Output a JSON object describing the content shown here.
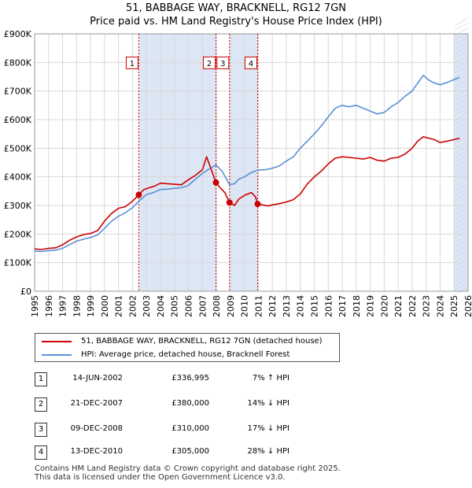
{
  "title_line1": "51, BABBAGE WAY, BRACKNELL, RG12 7GN",
  "title_line2": "Price paid vs. HM Land Registry's House Price Index (HPI)",
  "colors": {
    "property": "#cc0000",
    "hpi": "#5b8fd6",
    "band": "#dde6f4",
    "grid": "#d8d8d8",
    "vline": "#cc0000"
  },
  "legend": {
    "property_label": "51, BABBAGE WAY, BRACKNELL, RG12 7GN (detached house)",
    "hpi_label": "HPI: Average price, detached house, Bracknell Forest"
  },
  "sales": [
    {
      "num": "1",
      "date": "14-JUN-2002",
      "price": "£336,995",
      "hpi": "7% ↑ HPI"
    },
    {
      "num": "2",
      "date": "21-DEC-2007",
      "price": "£380,000",
      "hpi": "14% ↓ HPI"
    },
    {
      "num": "3",
      "date": "09-DEC-2008",
      "price": "£310,000",
      "hpi": "17% ↓ HPI"
    },
    {
      "num": "4",
      "date": "13-DEC-2010",
      "price": "£305,000",
      "hpi": "28% ↓ HPI"
    }
  ],
  "footer_line1": "Contains HM Land Registry data © Crown copyright and database right 2025.",
  "footer_line2": "This data is licensed under the Open Government Licence v3.0.",
  "chart_data": {
    "type": "line",
    "title": "51, BABBAGE WAY, BRACKNELL, RG12 7GN",
    "subtitle": "Price paid vs. HM Land Registry's House Price Index (HPI)",
    "xlabel": "",
    "ylabel": "",
    "xlim": [
      1995,
      2026
    ],
    "ylim": [
      0,
      900000
    ],
    "x_ticks": [
      1995,
      1996,
      1997,
      1998,
      1999,
      2000,
      2001,
      2002,
      2003,
      2004,
      2005,
      2006,
      2007,
      2008,
      2009,
      2010,
      2011,
      2012,
      2013,
      2014,
      2015,
      2016,
      2017,
      2018,
      2019,
      2020,
      2021,
      2022,
      2023,
      2024,
      2025,
      2026
    ],
    "y_ticks": [
      0,
      100000,
      200000,
      300000,
      400000,
      500000,
      600000,
      700000,
      800000,
      900000
    ],
    "y_tick_labels": [
      "£0",
      "£100K",
      "£200K",
      "£300K",
      "£400K",
      "£500K",
      "£600K",
      "£700K",
      "£800K",
      "£900K"
    ],
    "grid": true,
    "shaded_bands": [
      [
        2002.45,
        2007.97
      ],
      [
        2008.94,
        2010.95
      ],
      [
        2025.0,
        2026.0
      ]
    ],
    "sale_markers": [
      {
        "label": "1",
        "x": 2002.45,
        "y": 336995
      },
      {
        "label": "2",
        "x": 2007.97,
        "y": 380000
      },
      {
        "label": "3",
        "x": 2008.94,
        "y": 310000
      },
      {
        "label": "4",
        "x": 2010.95,
        "y": 305000
      }
    ],
    "series": [
      {
        "name": "51, BABBAGE WAY, BRACKNELL, RG12 7GN (detached house)",
        "x": [
          1995.0,
          1995.5,
          1996.0,
          1996.5,
          1997.0,
          1997.5,
          1998.0,
          1998.5,
          1999.0,
          1999.5,
          2000.0,
          2000.5,
          2001.0,
          2001.5,
          2002.0,
          2002.45,
          2002.8,
          2003.2,
          2003.6,
          2004.0,
          2004.5,
          2005.0,
          2005.5,
          2006.0,
          2006.5,
          2007.0,
          2007.3,
          2007.6,
          2007.97,
          2008.3,
          2008.6,
          2008.94,
          2009.3,
          2009.6,
          2010.0,
          2010.5,
          2010.8,
          2010.95,
          2011.3,
          2011.7,
          2012.0,
          2012.5,
          2013.0,
          2013.5,
          2014.0,
          2014.5,
          2015.0,
          2015.5,
          2016.0,
          2016.5,
          2017.0,
          2017.5,
          2018.0,
          2018.5,
          2019.0,
          2019.5,
          2020.0,
          2020.5,
          2021.0,
          2021.5,
          2022.0,
          2022.4,
          2022.8,
          2023.2,
          2023.6,
          2024.0,
          2024.5,
          2025.0,
          2025.4
        ],
        "values": [
          148000,
          146000,
          150000,
          152000,
          162000,
          178000,
          190000,
          198000,
          202000,
          212000,
          245000,
          272000,
          290000,
          296000,
          315000,
          336995,
          355000,
          362000,
          368000,
          378000,
          376000,
          374000,
          372000,
          390000,
          405000,
          425000,
          470000,
          430000,
          380000,
          360000,
          345000,
          310000,
          300000,
          322000,
          335000,
          345000,
          330000,
          305000,
          302000,
          298000,
          302000,
          306000,
          312000,
          320000,
          340000,
          375000,
          400000,
          420000,
          445000,
          465000,
          470000,
          468000,
          465000,
          462000,
          468000,
          458000,
          455000,
          465000,
          468000,
          480000,
          500000,
          525000,
          540000,
          535000,
          530000,
          520000,
          525000,
          530000,
          535000
        ]
      },
      {
        "name": "HPI: Average price, detached house, Bracknell Forest",
        "x": [
          1995.0,
          1995.5,
          1996.0,
          1996.5,
          1997.0,
          1997.5,
          1998.0,
          1998.5,
          1999.0,
          1999.5,
          2000.0,
          2000.5,
          2001.0,
          2001.5,
          2002.0,
          2002.45,
          2003.0,
          2003.5,
          2004.0,
          2004.5,
          2005.0,
          2005.5,
          2006.0,
          2006.5,
          2007.0,
          2007.5,
          2007.97,
          2008.4,
          2008.94,
          2009.3,
          2009.6,
          2010.0,
          2010.5,
          2010.95,
          2011.5,
          2012.0,
          2012.5,
          2013.0,
          2013.5,
          2014.0,
          2014.5,
          2015.0,
          2015.5,
          2016.0,
          2016.5,
          2017.0,
          2017.5,
          2018.0,
          2018.5,
          2019.0,
          2019.5,
          2020.0,
          2020.5,
          2021.0,
          2021.5,
          2022.0,
          2022.4,
          2022.8,
          2023.2,
          2023.6,
          2024.0,
          2024.5,
          2025.0,
          2025.4
        ],
        "values": [
          140000,
          139000,
          142000,
          144000,
          150000,
          163000,
          175000,
          182000,
          188000,
          197000,
          220000,
          245000,
          262000,
          275000,
          292000,
          315000,
          338000,
          345000,
          356000,
          357000,
          360000,
          362000,
          370000,
          392000,
          412000,
          428000,
          442000,
          420000,
          373000,
          376000,
          392000,
          400000,
          415000,
          423000,
          425000,
          430000,
          438000,
          455000,
          470000,
          500000,
          525000,
          550000,
          578000,
          610000,
          640000,
          650000,
          645000,
          650000,
          640000,
          630000,
          620000,
          625000,
          645000,
          660000,
          682000,
          700000,
          728000,
          755000,
          738000,
          728000,
          722000,
          730000,
          740000,
          748000
        ]
      }
    ]
  }
}
